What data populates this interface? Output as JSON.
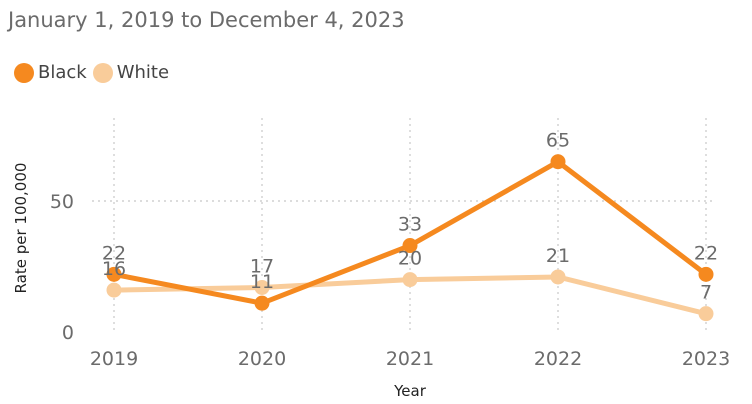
{
  "chart_data": {
    "type": "line",
    "subtitle": "January 1, 2019 to December 4, 2023",
    "xlabel": "Year",
    "ylabel": "Rate per 100,000",
    "categories": [
      "2019",
      "2020",
      "2021",
      "2022",
      "2023"
    ],
    "yticks": [
      "0",
      "50"
    ],
    "ylim": [
      0,
      75
    ],
    "grid": "dotted",
    "legend_position": "top-left",
    "series": [
      {
        "name": "Black",
        "color": "#F5891F",
        "values": [
          22,
          11,
          33,
          65,
          22
        ],
        "labels": [
          "22",
          "11",
          "33",
          "65",
          "22"
        ]
      },
      {
        "name": "White",
        "color": "#F9CC9A",
        "values": [
          16,
          17,
          20,
          21,
          7
        ],
        "labels": [
          "16",
          "17",
          "20",
          "21",
          "7"
        ]
      }
    ]
  }
}
